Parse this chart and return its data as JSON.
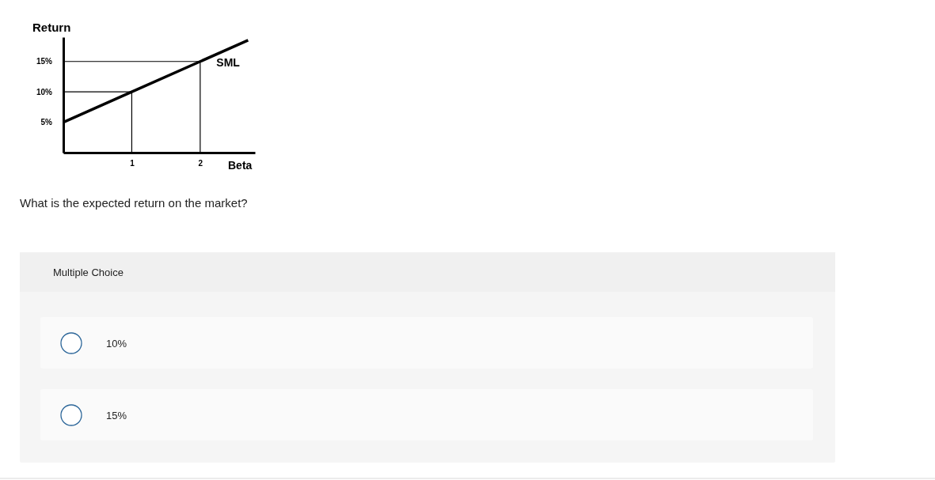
{
  "chart_data": {
    "type": "line",
    "xlabel": "Beta",
    "ylabel": "Return",
    "xlim": [
      0,
      2.8
    ],
    "ylim": [
      0,
      19
    ],
    "xticks": [
      1,
      2
    ],
    "yticks": [
      {
        "value": 5,
        "label": "5%"
      },
      {
        "value": 10,
        "label": "10%"
      },
      {
        "value": 15,
        "label": "15%"
      }
    ],
    "series": [
      {
        "name": "SML",
        "color": "#000000",
        "x": [
          0,
          1,
          2,
          2.7
        ],
        "values": [
          5,
          10,
          15,
          18.5
        ]
      },
      {
        "color": "#000000",
        "x": [
          0,
          1,
          1
        ],
        "values": [
          10,
          10,
          0
        ]
      },
      {
        "color": "#000000",
        "x": [
          0,
          2,
          2
        ],
        "values": [
          15,
          15,
          0
        ]
      }
    ],
    "annotations": [
      "What is the expected return on the market?",
      "Multiple Choice",
      "10%",
      "15%"
    ]
  }
}
